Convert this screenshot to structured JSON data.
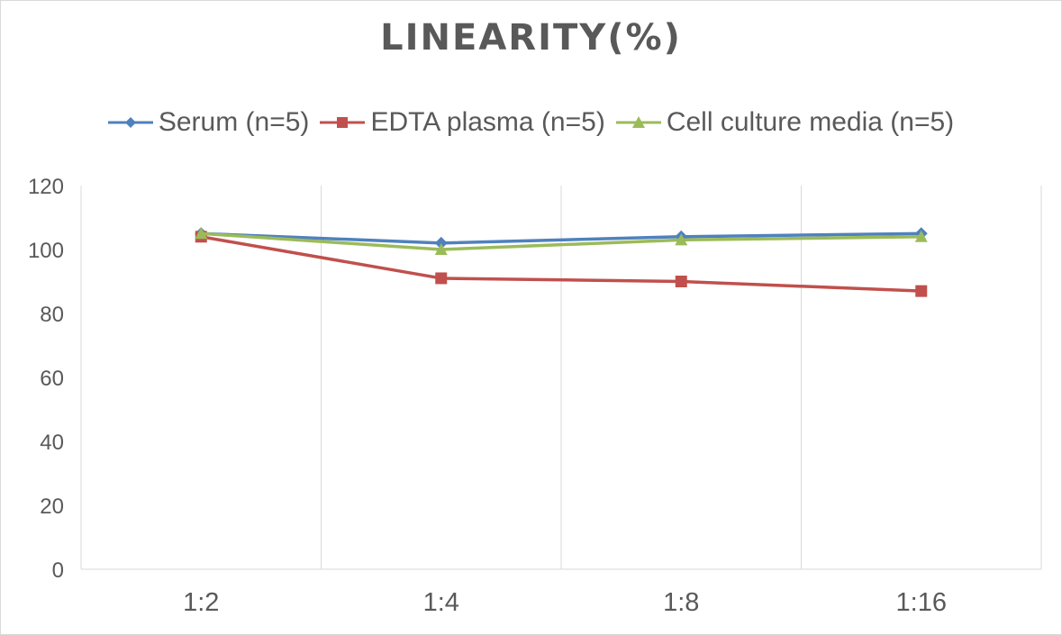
{
  "chart_data": {
    "type": "line",
    "title": "LINEARITY(%)",
    "categories": [
      "1:2",
      "1:4",
      "1:8",
      "1:16"
    ],
    "series": [
      {
        "name": "Serum (n=5)",
        "color": "#4f81bd",
        "marker": "diamond",
        "values": [
          105,
          102,
          104,
          105
        ]
      },
      {
        "name": "EDTA plasma (n=5)",
        "color": "#c0504d",
        "marker": "square",
        "values": [
          104,
          91,
          90,
          87
        ]
      },
      {
        "name": "Cell culture media (n=5)",
        "color": "#9bbb59",
        "marker": "triangle",
        "values": [
          105,
          100,
          103,
          104
        ]
      }
    ],
    "ylim": [
      0,
      120
    ],
    "yticks": [
      0,
      20,
      40,
      60,
      80,
      100,
      120
    ],
    "xlabel": "",
    "ylabel": "",
    "grid": "vertical",
    "legend_position": "top"
  }
}
